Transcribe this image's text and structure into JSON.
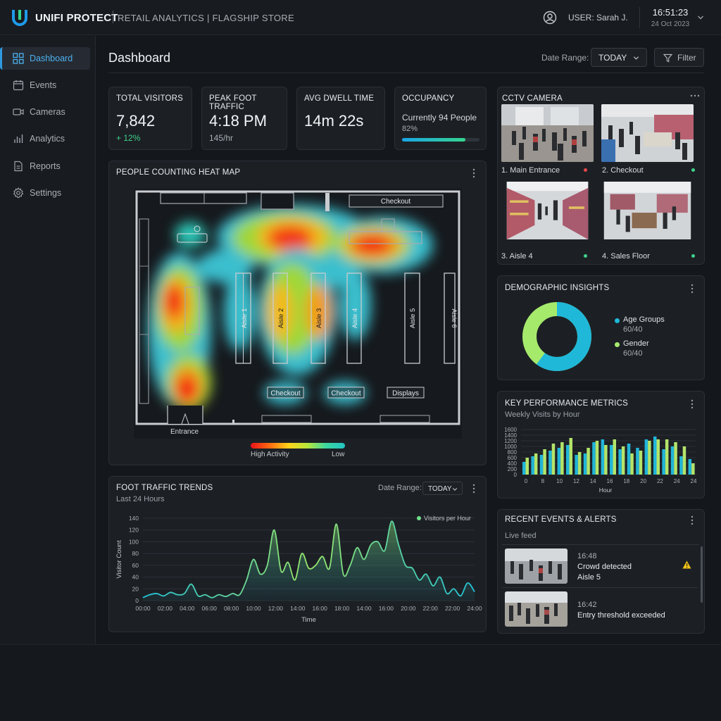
{
  "app": {
    "brand": "UNIFI PROTECT",
    "subtitle": "RETAIL ANALYTICS | FLAGSHIP STORE",
    "user_label": "USER:",
    "user_name": "Sarah J.",
    "time": "16:51:23",
    "date": "24 Oct 2023"
  },
  "sidebar": {
    "items": [
      {
        "label": "Dashboard",
        "icon": "dashboard-icon",
        "active": true
      },
      {
        "label": "Events",
        "icon": "calendar-icon",
        "active": false
      },
      {
        "label": "Cameras",
        "icon": "camera-icon",
        "active": false
      },
      {
        "label": "Analytics",
        "icon": "bar-chart-icon",
        "active": false
      },
      {
        "label": "Reports",
        "icon": "document-icon",
        "active": false
      },
      {
        "label": "Settings",
        "icon": "gear-icon",
        "active": false
      }
    ]
  },
  "header": {
    "title": "Dashboard",
    "date_range_label": "Date Range:",
    "date_range_value": "TODAY",
    "filter_label": "Filter"
  },
  "stats": {
    "total_visitors": {
      "label": "TOTAL VISITORS",
      "value": "7,842",
      "change": "+ 12%"
    },
    "peak_foot_traffic": {
      "label": "PEAK FOOT TRAFFIC",
      "value": "4:18 PM",
      "sub": "145/hr"
    },
    "avg_dwell_time": {
      "label": "AVG DWELL TIME",
      "value": "14m 22s"
    },
    "occupancy": {
      "label": "OCCUPANCY",
      "text": "Currently 94 People",
      "percent_text": "82%",
      "percent": 82
    }
  },
  "heatmap": {
    "title": "PEOPLE COUNTING HEAT MAP",
    "labels": {
      "checkout_top": "Checkout",
      "aisle1": "Aisle 1",
      "aisle2": "Aisle 2",
      "aisle3": "Aisle 3",
      "aisle4": "Aisle 4",
      "aisle5": "Aisle 5",
      "aisle6": "Aisle 6",
      "checkout_a": "Checkout",
      "checkout_b": "Checkout",
      "displays": "Displays",
      "entrance": "Entrance"
    },
    "legend_high": "High Activity",
    "legend_low": "Low"
  },
  "cctv": {
    "title": "CCTV CAMERA",
    "cameras": [
      {
        "label": "1. Main Entrance",
        "status": "red"
      },
      {
        "label": "2. Checkout",
        "status": "green"
      },
      {
        "label": "3. Aisle 4",
        "status": "green"
      },
      {
        "label": "4. Sales Floor",
        "status": "green"
      }
    ]
  },
  "demographics": {
    "title": "DEMOGRAPHIC INSIGHTS",
    "legend": [
      {
        "label": "Age Groups",
        "value": "60/40",
        "color": "#1fb8d8"
      },
      {
        "label": "Gender",
        "value": "60/40",
        "color": "#a6ea6c"
      }
    ],
    "donut": {
      "primary_fraction": 0.6,
      "secondary_fraction": 0.4,
      "primary_color": "#1fb8d8",
      "secondary_color": "#a6ea6c"
    }
  },
  "kpi": {
    "title": "KEY PERFORMANCE METRICS",
    "subtitle": "Weekly Visits by Hour",
    "xlabel": "Hour"
  },
  "foot_traffic": {
    "title": "FOOT TRAFFIC TRENDS",
    "subtitle": "Last 24 Hours",
    "date_range_label": "Date Range:",
    "date_range_value": "TODAY",
    "legend": "Visitors per Hour",
    "ylabel": "Visitor Count",
    "xlabel": "Time"
  },
  "events": {
    "title": "RECENT EVENTS & ALERTS",
    "subtitle": "Live feed",
    "items": [
      {
        "time": "16:48",
        "line1": "Crowd detected",
        "line2": "Aisle 5",
        "alert": true
      },
      {
        "time": "16:42",
        "line1": "Entry threshold exceeded",
        "line2": "",
        "alert": false
      }
    ]
  },
  "chart_data": [
    {
      "type": "bar",
      "title": "Weekly Visits by Hour",
      "xlabel": "Hour",
      "ylabel": "",
      "ylim": [
        0,
        1600
      ],
      "yticks": [
        0,
        200,
        400,
        600,
        800,
        1000,
        1200,
        1400,
        1600
      ],
      "xtick_labels": [
        "0",
        "8",
        "10",
        "12",
        "14",
        "16",
        "18",
        "20",
        "22",
        "24",
        "24"
      ],
      "series": [
        {
          "color": "#21b5d9",
          "values": [
            450,
            650,
            700,
            850,
            950,
            1050,
            700,
            750,
            1150,
            1250,
            1050,
            900,
            1100,
            950,
            1250,
            1350,
            900,
            1000,
            650,
            550
          ]
        },
        {
          "color": "#b4e46a",
          "values": [
            600,
            750,
            900,
            1100,
            1150,
            1300,
            800,
            950,
            1200,
            1050,
            1250,
            1000,
            750,
            850,
            1200,
            1250,
            1250,
            1150,
            1000,
            400
          ]
        }
      ],
      "grid": true
    },
    {
      "type": "area",
      "title": "FOOT TRAFFIC TRENDS",
      "xlabel": "Time",
      "ylabel": "Visitor Count",
      "ylim": [
        0,
        140
      ],
      "yticks": [
        0,
        20,
        40,
        60,
        80,
        100,
        120,
        140
      ],
      "xtick_labels": [
        "00:00",
        "02:00",
        "04:00",
        "06:00",
        "08:00",
        "10:00",
        "12:00",
        "14:00",
        "16:00",
        "18:00",
        "14:00",
        "16:00",
        "20:00",
        "22:00",
        "22:00",
        "24:00"
      ],
      "series": [
        {
          "name": "Visitors per Hour",
          "x": [
            0,
            0.5,
            1,
            1.5,
            2,
            2.5,
            3,
            3.5,
            4,
            4.5,
            5,
            5.5,
            6,
            6.5,
            7,
            7.5,
            8,
            8.5,
            9,
            9.5,
            10,
            10.5,
            11,
            11.5,
            12,
            12.5,
            13,
            13.5,
            14,
            14.5,
            15,
            15.5,
            16,
            16.5,
            17,
            17.5,
            18,
            18.5,
            19,
            19.5,
            20,
            20.5,
            21,
            21.5,
            22,
            22.5,
            23,
            23.5,
            24
          ],
          "y": [
            5,
            10,
            12,
            8,
            14,
            10,
            12,
            28,
            8,
            10,
            5,
            10,
            7,
            12,
            10,
            35,
            70,
            45,
            60,
            120,
            50,
            65,
            35,
            80,
            55,
            60,
            75,
            55,
            130,
            45,
            60,
            90,
            70,
            95,
            100,
            85,
            135,
            95,
            60,
            55,
            35,
            45,
            25,
            40,
            12,
            20,
            8,
            30,
            15
          ]
        }
      ],
      "grid": true,
      "legend": "top-right"
    }
  ]
}
